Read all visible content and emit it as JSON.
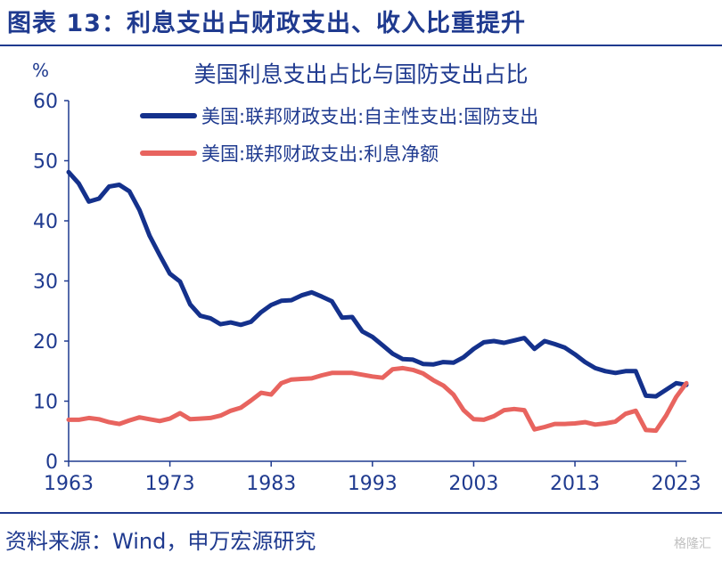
{
  "figure_title": "图表 13：利息支出占财政支出、收入比重提升",
  "source": "资料来源：Wind，申万宏源研究",
  "watermark": "格隆汇",
  "chart_data": {
    "type": "line",
    "title": "美国利息支出占比与国防支出占比",
    "ylabel": "%",
    "xlabel": "",
    "xlim": [
      1963,
      2024
    ],
    "ylim": [
      0,
      60
    ],
    "yticks": [
      0,
      10,
      20,
      30,
      40,
      50,
      60
    ],
    "xticks": [
      1963,
      1973,
      1983,
      1993,
      2003,
      2013,
      2023
    ],
    "grid": false,
    "legend": "top",
    "series": [
      {
        "name": "美国:联邦财政支出:自主性支出:国防支出",
        "color": "#14318c",
        "x": [
          1963,
          1964,
          1965,
          1966,
          1967,
          1968,
          1969,
          1970,
          1971,
          1972,
          1973,
          1974,
          1975,
          1976,
          1977,
          1978,
          1979,
          1980,
          1981,
          1982,
          1983,
          1984,
          1985,
          1986,
          1987,
          1988,
          1989,
          1990,
          1991,
          1992,
          1993,
          1994,
          1995,
          1996,
          1997,
          1998,
          1999,
          2000,
          2001,
          2002,
          2003,
          2004,
          2005,
          2006,
          2007,
          2008,
          2009,
          2010,
          2011,
          2012,
          2013,
          2014,
          2015,
          2016,
          2017,
          2018,
          2019,
          2020,
          2021,
          2022,
          2023,
          2024
        ],
        "values": [
          48.1,
          46.2,
          43.2,
          43.7,
          45.7,
          46.0,
          44.9,
          41.8,
          37.5,
          34.3,
          31.2,
          29.9,
          26.1,
          24.2,
          23.8,
          22.8,
          23.1,
          22.7,
          23.2,
          24.8,
          26.0,
          26.7,
          26.8,
          27.6,
          28.1,
          27.4,
          26.6,
          23.9,
          24.0,
          21.6,
          20.7,
          19.3,
          17.9,
          17.0,
          16.9,
          16.2,
          16.1,
          16.5,
          16.4,
          17.3,
          18.7,
          19.8,
          20.0,
          19.7,
          20.1,
          20.5,
          18.7,
          20.0,
          19.5,
          18.9,
          17.8,
          16.5,
          15.5,
          15.0,
          14.7,
          15.0,
          15.0,
          10.9,
          10.8,
          11.9,
          13.0,
          12.7
        ]
      },
      {
        "name": "美国:联邦财政支出:利息净额",
        "color": "#e8645f",
        "x": [
          1963,
          1964,
          1965,
          1966,
          1967,
          1968,
          1969,
          1970,
          1971,
          1972,
          1973,
          1974,
          1975,
          1976,
          1977,
          1978,
          1979,
          1980,
          1981,
          1982,
          1983,
          1984,
          1985,
          1986,
          1987,
          1988,
          1989,
          1990,
          1991,
          1992,
          1993,
          1994,
          1995,
          1996,
          1997,
          1998,
          1999,
          2000,
          2001,
          2002,
          2003,
          2004,
          2005,
          2006,
          2007,
          2008,
          2009,
          2010,
          2011,
          2012,
          2013,
          2014,
          2015,
          2016,
          2017,
          2018,
          2019,
          2020,
          2021,
          2022,
          2023,
          2024
        ],
        "values": [
          6.9,
          6.9,
          7.2,
          7.0,
          6.5,
          6.2,
          6.8,
          7.3,
          7.0,
          6.7,
          7.1,
          8.0,
          7.0,
          7.1,
          7.2,
          7.6,
          8.4,
          8.9,
          10.1,
          11.4,
          11.1,
          13.0,
          13.6,
          13.7,
          13.8,
          14.3,
          14.7,
          14.7,
          14.7,
          14.4,
          14.1,
          13.9,
          15.3,
          15.5,
          15.2,
          14.6,
          13.5,
          12.6,
          11.1,
          8.5,
          7.0,
          6.9,
          7.5,
          8.5,
          8.7,
          8.5,
          5.3,
          5.7,
          6.2,
          6.2,
          6.3,
          6.5,
          6.1,
          6.3,
          6.6,
          7.9,
          8.4,
          5.2,
          5.1,
          7.6,
          10.7,
          13.0
        ]
      }
    ]
  }
}
